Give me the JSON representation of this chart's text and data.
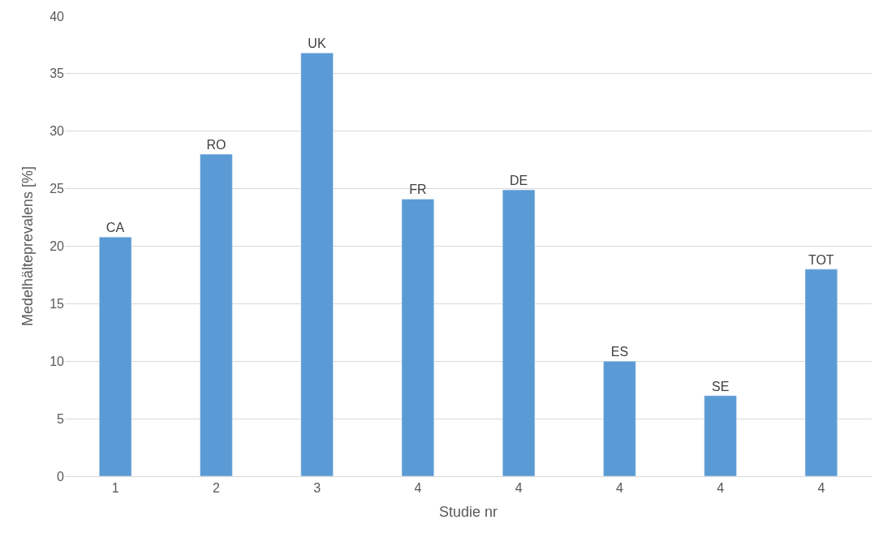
{
  "chart_data": {
    "type": "bar",
    "xlabel": "Studie nr",
    "ylabel": "Medelhälteprevalens [%]",
    "categories": [
      "1",
      "2",
      "3",
      "4",
      "4",
      "4",
      "4",
      "4"
    ],
    "values": [
      20.8,
      28.0,
      36.8,
      24.1,
      24.9,
      10.0,
      7.0,
      18.0
    ],
    "value_labels": [
      "CA",
      "RO",
      "UK",
      "FR",
      "DE",
      "ES",
      "SE",
      "TOT"
    ],
    "color": "#5b9bd5",
    "ylim": [
      0,
      40
    ],
    "yticks": [
      0,
      5,
      10,
      15,
      20,
      25,
      30,
      35,
      40
    ],
    "grid": "y"
  }
}
